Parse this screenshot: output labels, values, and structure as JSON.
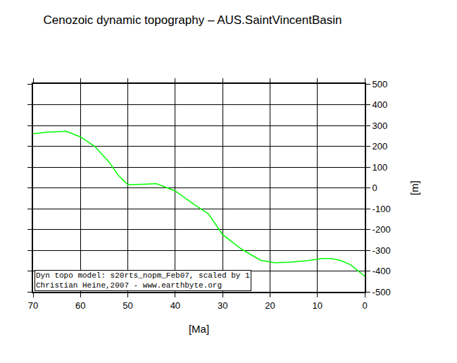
{
  "chart_data": {
    "type": "line",
    "title": "Cenozoic dynamic topography – AUS.SaintVincentBasin",
    "x_label": "[Ma]",
    "y_label": "[m]",
    "x": [
      70,
      67,
      63,
      60,
      57,
      54,
      52,
      50,
      47,
      44,
      40,
      36,
      33,
      30,
      26,
      22,
      19,
      16,
      12,
      9,
      7,
      5,
      3,
      0
    ],
    "values": [
      260,
      268,
      272,
      245,
      200,
      125,
      60,
      15,
      17,
      20,
      -15,
      -80,
      -125,
      -225,
      -295,
      -348,
      -360,
      -358,
      -350,
      -340,
      -340,
      -350,
      -370,
      -425
    ],
    "color": "#00ff00",
    "xlim": [
      70,
      0
    ],
    "xticks": [
      70,
      60,
      50,
      40,
      30,
      20,
      10,
      0
    ],
    "ylim": [
      -500,
      500
    ],
    "yticks": [
      -500,
      -400,
      -300,
      -200,
      -100,
      0,
      100,
      200,
      300,
      400,
      500
    ],
    "grid": true,
    "annotations": [
      "Dyn topo model: s20rts_nopm_Feb07, scaled by 1",
      "Christian Heine,2007 - www.earthbyte.org"
    ]
  }
}
